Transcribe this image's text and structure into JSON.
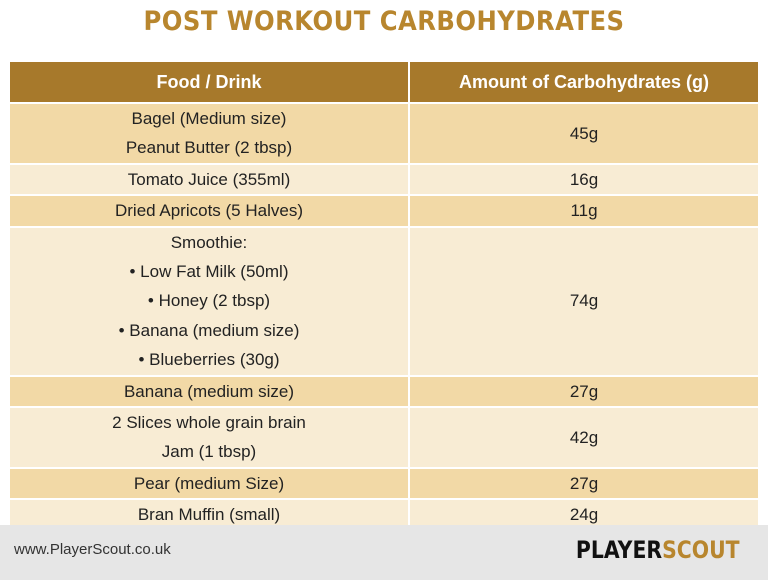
{
  "header": {
    "title": "POST WORKOUT CARBOHYDRATES"
  },
  "table": {
    "columns": [
      "Food / Drink",
      "Amount of Carbohydrates (g)"
    ],
    "rows": [
      {
        "food": [
          "Bagel (Medium size)",
          "Peanut Butter (2 tbsp)"
        ],
        "carbs": "45g"
      },
      {
        "food": [
          "Tomato Juice (355ml)"
        ],
        "carbs": "16g"
      },
      {
        "food": [
          "Dried Apricots (5 Halves)"
        ],
        "carbs": "11g"
      },
      {
        "food": [
          "Smoothie:",
          "• Low Fat Milk (50ml)",
          "• Honey (2 tbsp)",
          "• Banana (medium size)",
          "• Blueberries (30g)"
        ],
        "carbs": "74g"
      },
      {
        "food": [
          "Banana (medium size)"
        ],
        "carbs": "27g"
      },
      {
        "food": [
          "2 Slices whole grain brain",
          "Jam (1 tbsp)"
        ],
        "carbs": "42g"
      },
      {
        "food": [
          "Pear (medium Size)"
        ],
        "carbs": "27g"
      },
      {
        "food": [
          "Bran Muffin (small)"
        ],
        "carbs": "24g"
      }
    ]
  },
  "footer": {
    "url": "www.PlayerScout.co.uk",
    "logo": [
      "PLAYER",
      "SCOUT"
    ]
  }
}
